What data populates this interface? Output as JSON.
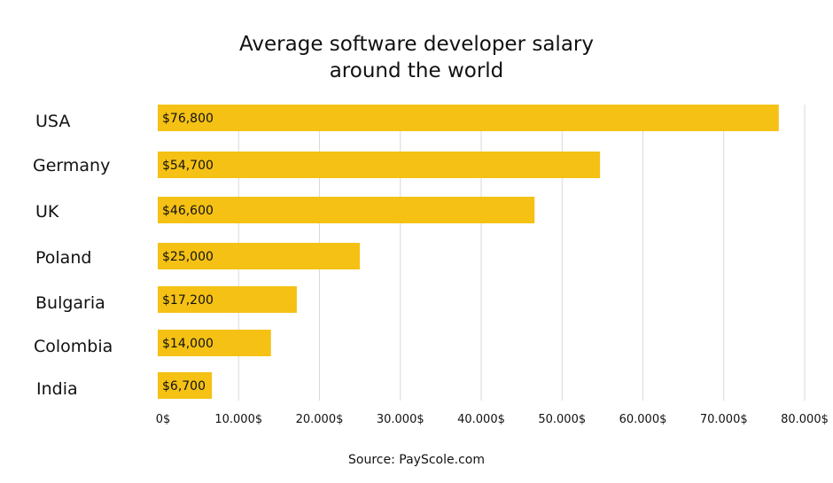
{
  "chart_data": {
    "type": "bar",
    "orientation": "horizontal",
    "title": [
      "Average software developer salary",
      "around the world"
    ],
    "categories": [
      "USA",
      "Germany",
      "UK",
      "Poland",
      "Bulgaria",
      "Colombia",
      "India"
    ],
    "values": [
      76800,
      54700,
      46600,
      25000,
      17200,
      14000,
      6700
    ],
    "value_labels": [
      "$76,800",
      "$54,700",
      "$46,600",
      "$25,000",
      "$17,200",
      "$14,000",
      "$6,700"
    ],
    "xlim": [
      0,
      80000
    ],
    "x_ticks": [
      0,
      10000,
      20000,
      30000,
      40000,
      50000,
      60000,
      70000,
      80000
    ],
    "x_tick_labels": [
      "0$",
      "10.000$",
      "20.000$",
      "30.000$",
      "40.000$",
      "50.000$",
      "60.000$",
      "70.000$",
      "80.000$"
    ],
    "xlabel": "",
    "ylabel": "",
    "grid": "vertical",
    "legend": "none",
    "bar_color": "#F5C114",
    "grid_color": "#D9D9D9"
  },
  "source": "Source: PayScole.com"
}
